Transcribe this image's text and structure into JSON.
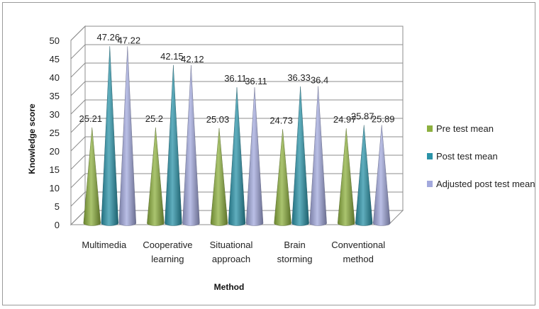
{
  "chart_data": {
    "type": "bar",
    "style": "3d-cone",
    "xlabel": "Method",
    "ylabel": "Knowledge score",
    "ylim": [
      0,
      50
    ],
    "yticks": [
      0,
      5,
      10,
      15,
      20,
      25,
      30,
      35,
      40,
      45,
      50
    ],
    "grid": true,
    "legend_position": "right",
    "categories": [
      [
        "Multimedia"
      ],
      [
        "Cooperative",
        "learning"
      ],
      [
        "Situational",
        "approach"
      ],
      [
        "Brain",
        "storming"
      ],
      [
        "Conventional",
        "method"
      ]
    ],
    "series": [
      {
        "name": "Pre test mean",
        "values": [
          25.21,
          25.2,
          25.03,
          24.73,
          24.97
        ],
        "labels": [
          "25.21",
          "25.2",
          "25.03",
          "24.73",
          "24.97"
        ],
        "color": "#8db03f"
      },
      {
        "name": "Post test mean",
        "values": [
          47.26,
          42.15,
          36.11,
          36.33,
          25.87
        ],
        "labels": [
          "47.26",
          "42.15",
          "36.11",
          "36.33",
          "25.87"
        ],
        "color": "#2b93a8"
      },
      {
        "name": "Adjusted post test mean",
        "values": [
          47.22,
          42.12,
          36.11,
          36.4,
          25.89
        ],
        "labels": [
          "47.22",
          "42.12",
          "36.11",
          "36.4",
          "25.89"
        ],
        "color": "#a3a9dd"
      }
    ]
  }
}
